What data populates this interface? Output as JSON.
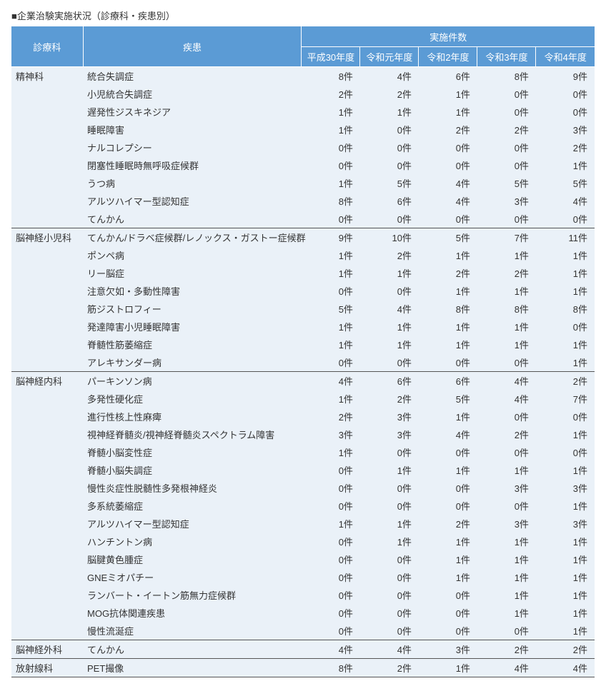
{
  "title": "■企業治験実施状況（診療科・疾患別）",
  "header": {
    "dept": "診療科",
    "disease": "疾患",
    "count_group": "実施件数",
    "years": [
      "平成30年度",
      "令和元年度",
      "令和2年度",
      "令和3年度",
      "令和4年度"
    ]
  },
  "unit": "件",
  "groups": [
    {
      "dept": "精神科",
      "rows": [
        {
          "disease": "統合失調症",
          "v": [
            8,
            4,
            6,
            8,
            9
          ]
        },
        {
          "disease": "小児統合失調症",
          "v": [
            2,
            2,
            1,
            0,
            0
          ]
        },
        {
          "disease": "遅発性ジスキネジア",
          "v": [
            1,
            1,
            1,
            0,
            0
          ]
        },
        {
          "disease": "睡眠障害",
          "v": [
            1,
            0,
            2,
            2,
            3
          ]
        },
        {
          "disease": "ナルコレプシー",
          "v": [
            0,
            0,
            0,
            0,
            2
          ]
        },
        {
          "disease": "閉塞性睡眠時無呼吸症候群",
          "v": [
            0,
            0,
            0,
            0,
            1
          ]
        },
        {
          "disease": "うつ病",
          "v": [
            1,
            5,
            4,
            5,
            5
          ]
        },
        {
          "disease": "アルツハイマー型認知症",
          "v": [
            8,
            6,
            4,
            3,
            4
          ]
        },
        {
          "disease": "てんかん",
          "v": [
            0,
            0,
            0,
            0,
            0
          ]
        }
      ]
    },
    {
      "dept": "脳神経小児科",
      "rows": [
        {
          "disease": "てんかん/ドラベ症候群/レノックス・ガストー症候群",
          "v": [
            9,
            10,
            5,
            7,
            11
          ]
        },
        {
          "disease": "ポンペ病",
          "v": [
            1,
            2,
            1,
            1,
            1
          ]
        },
        {
          "disease": "リー脳症",
          "v": [
            1,
            1,
            2,
            2,
            1
          ]
        },
        {
          "disease": "注意欠如・多動性障害",
          "v": [
            0,
            0,
            1,
            1,
            1
          ]
        },
        {
          "disease": "筋ジストロフィー",
          "v": [
            5,
            4,
            8,
            8,
            8
          ]
        },
        {
          "disease": "発達障害小児睡眠障害",
          "v": [
            1,
            1,
            1,
            1,
            0
          ]
        },
        {
          "disease": "脊髄性筋萎縮症",
          "v": [
            1,
            1,
            1,
            1,
            1
          ]
        },
        {
          "disease": "アレキサンダー病",
          "v": [
            0,
            0,
            0,
            0,
            1
          ]
        }
      ]
    },
    {
      "dept": "脳神経内科",
      "rows": [
        {
          "disease": "パーキンソン病",
          "v": [
            4,
            6,
            6,
            4,
            2
          ]
        },
        {
          "disease": "多発性硬化症",
          "v": [
            1,
            2,
            5,
            4,
            7
          ]
        },
        {
          "disease": "進行性核上性麻痺",
          "v": [
            2,
            3,
            1,
            0,
            0
          ]
        },
        {
          "disease": "視神経脊髄炎/視神経脊髄炎スペクトラム障害",
          "v": [
            3,
            3,
            4,
            2,
            1
          ]
        },
        {
          "disease": "脊髄小脳変性症",
          "v": [
            1,
            0,
            0,
            0,
            0
          ]
        },
        {
          "disease": "脊髄小脳失調症",
          "v": [
            0,
            1,
            1,
            1,
            1
          ]
        },
        {
          "disease": "慢性炎症性脱髄性多発根神経炎",
          "v": [
            0,
            0,
            0,
            3,
            3
          ]
        },
        {
          "disease": "多系統萎縮症",
          "v": [
            0,
            0,
            0,
            0,
            1
          ]
        },
        {
          "disease": "アルツハイマー型認知症",
          "v": [
            1,
            1,
            2,
            3,
            3
          ]
        },
        {
          "disease": "ハンチントン病",
          "v": [
            0,
            1,
            1,
            1,
            1
          ]
        },
        {
          "disease": "脳腱黄色腫症",
          "v": [
            0,
            0,
            1,
            1,
            1
          ]
        },
        {
          "disease": "GNEミオパチー",
          "v": [
            0,
            0,
            1,
            1,
            1
          ]
        },
        {
          "disease": "ランバート・イートン筋無力症候群",
          "v": [
            0,
            0,
            0,
            1,
            1
          ]
        },
        {
          "disease": "MOG抗体関連疾患",
          "v": [
            0,
            0,
            0,
            1,
            1
          ]
        },
        {
          "disease": "慢性流涎症",
          "v": [
            0,
            0,
            0,
            0,
            1
          ]
        }
      ]
    },
    {
      "dept": "脳神経外科",
      "rows": [
        {
          "disease": "てんかん",
          "v": [
            4,
            4,
            3,
            2,
            2
          ]
        }
      ]
    },
    {
      "dept": "放射線科",
      "rows": [
        {
          "disease": "PET撮像",
          "v": [
            8,
            2,
            1,
            4,
            4
          ]
        }
      ]
    }
  ]
}
